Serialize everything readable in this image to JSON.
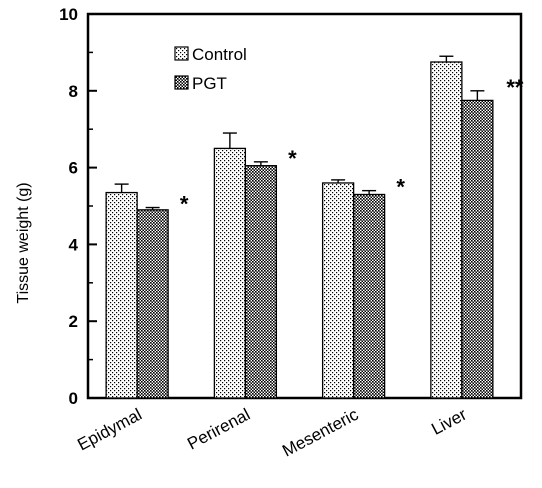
{
  "chart_data": {
    "type": "bar",
    "title": "",
    "xlabel": "",
    "ylabel": "Tissue weight (g)",
    "ylim": [
      0,
      10
    ],
    "yticks": [
      0,
      2,
      4,
      6,
      8,
      10
    ],
    "grid": false,
    "legend_position": "top-left",
    "categories": [
      "Epidymal",
      "Perirenal",
      "Mesenteric",
      "Liver"
    ],
    "series": [
      {
        "name": "Control",
        "values": [
          5.35,
          6.5,
          5.6,
          8.75
        ],
        "errors": [
          0.22,
          0.4,
          0.08,
          0.15
        ],
        "pattern": "light-dots",
        "significance": [
          "",
          "",
          "",
          ""
        ]
      },
      {
        "name": "PGT",
        "values": [
          4.9,
          6.05,
          5.3,
          7.75
        ],
        "errors": [
          0.06,
          0.1,
          0.1,
          0.25
        ],
        "pattern": "dense-dots",
        "significance": [
          "*",
          "*",
          "*",
          "**"
        ]
      }
    ]
  }
}
